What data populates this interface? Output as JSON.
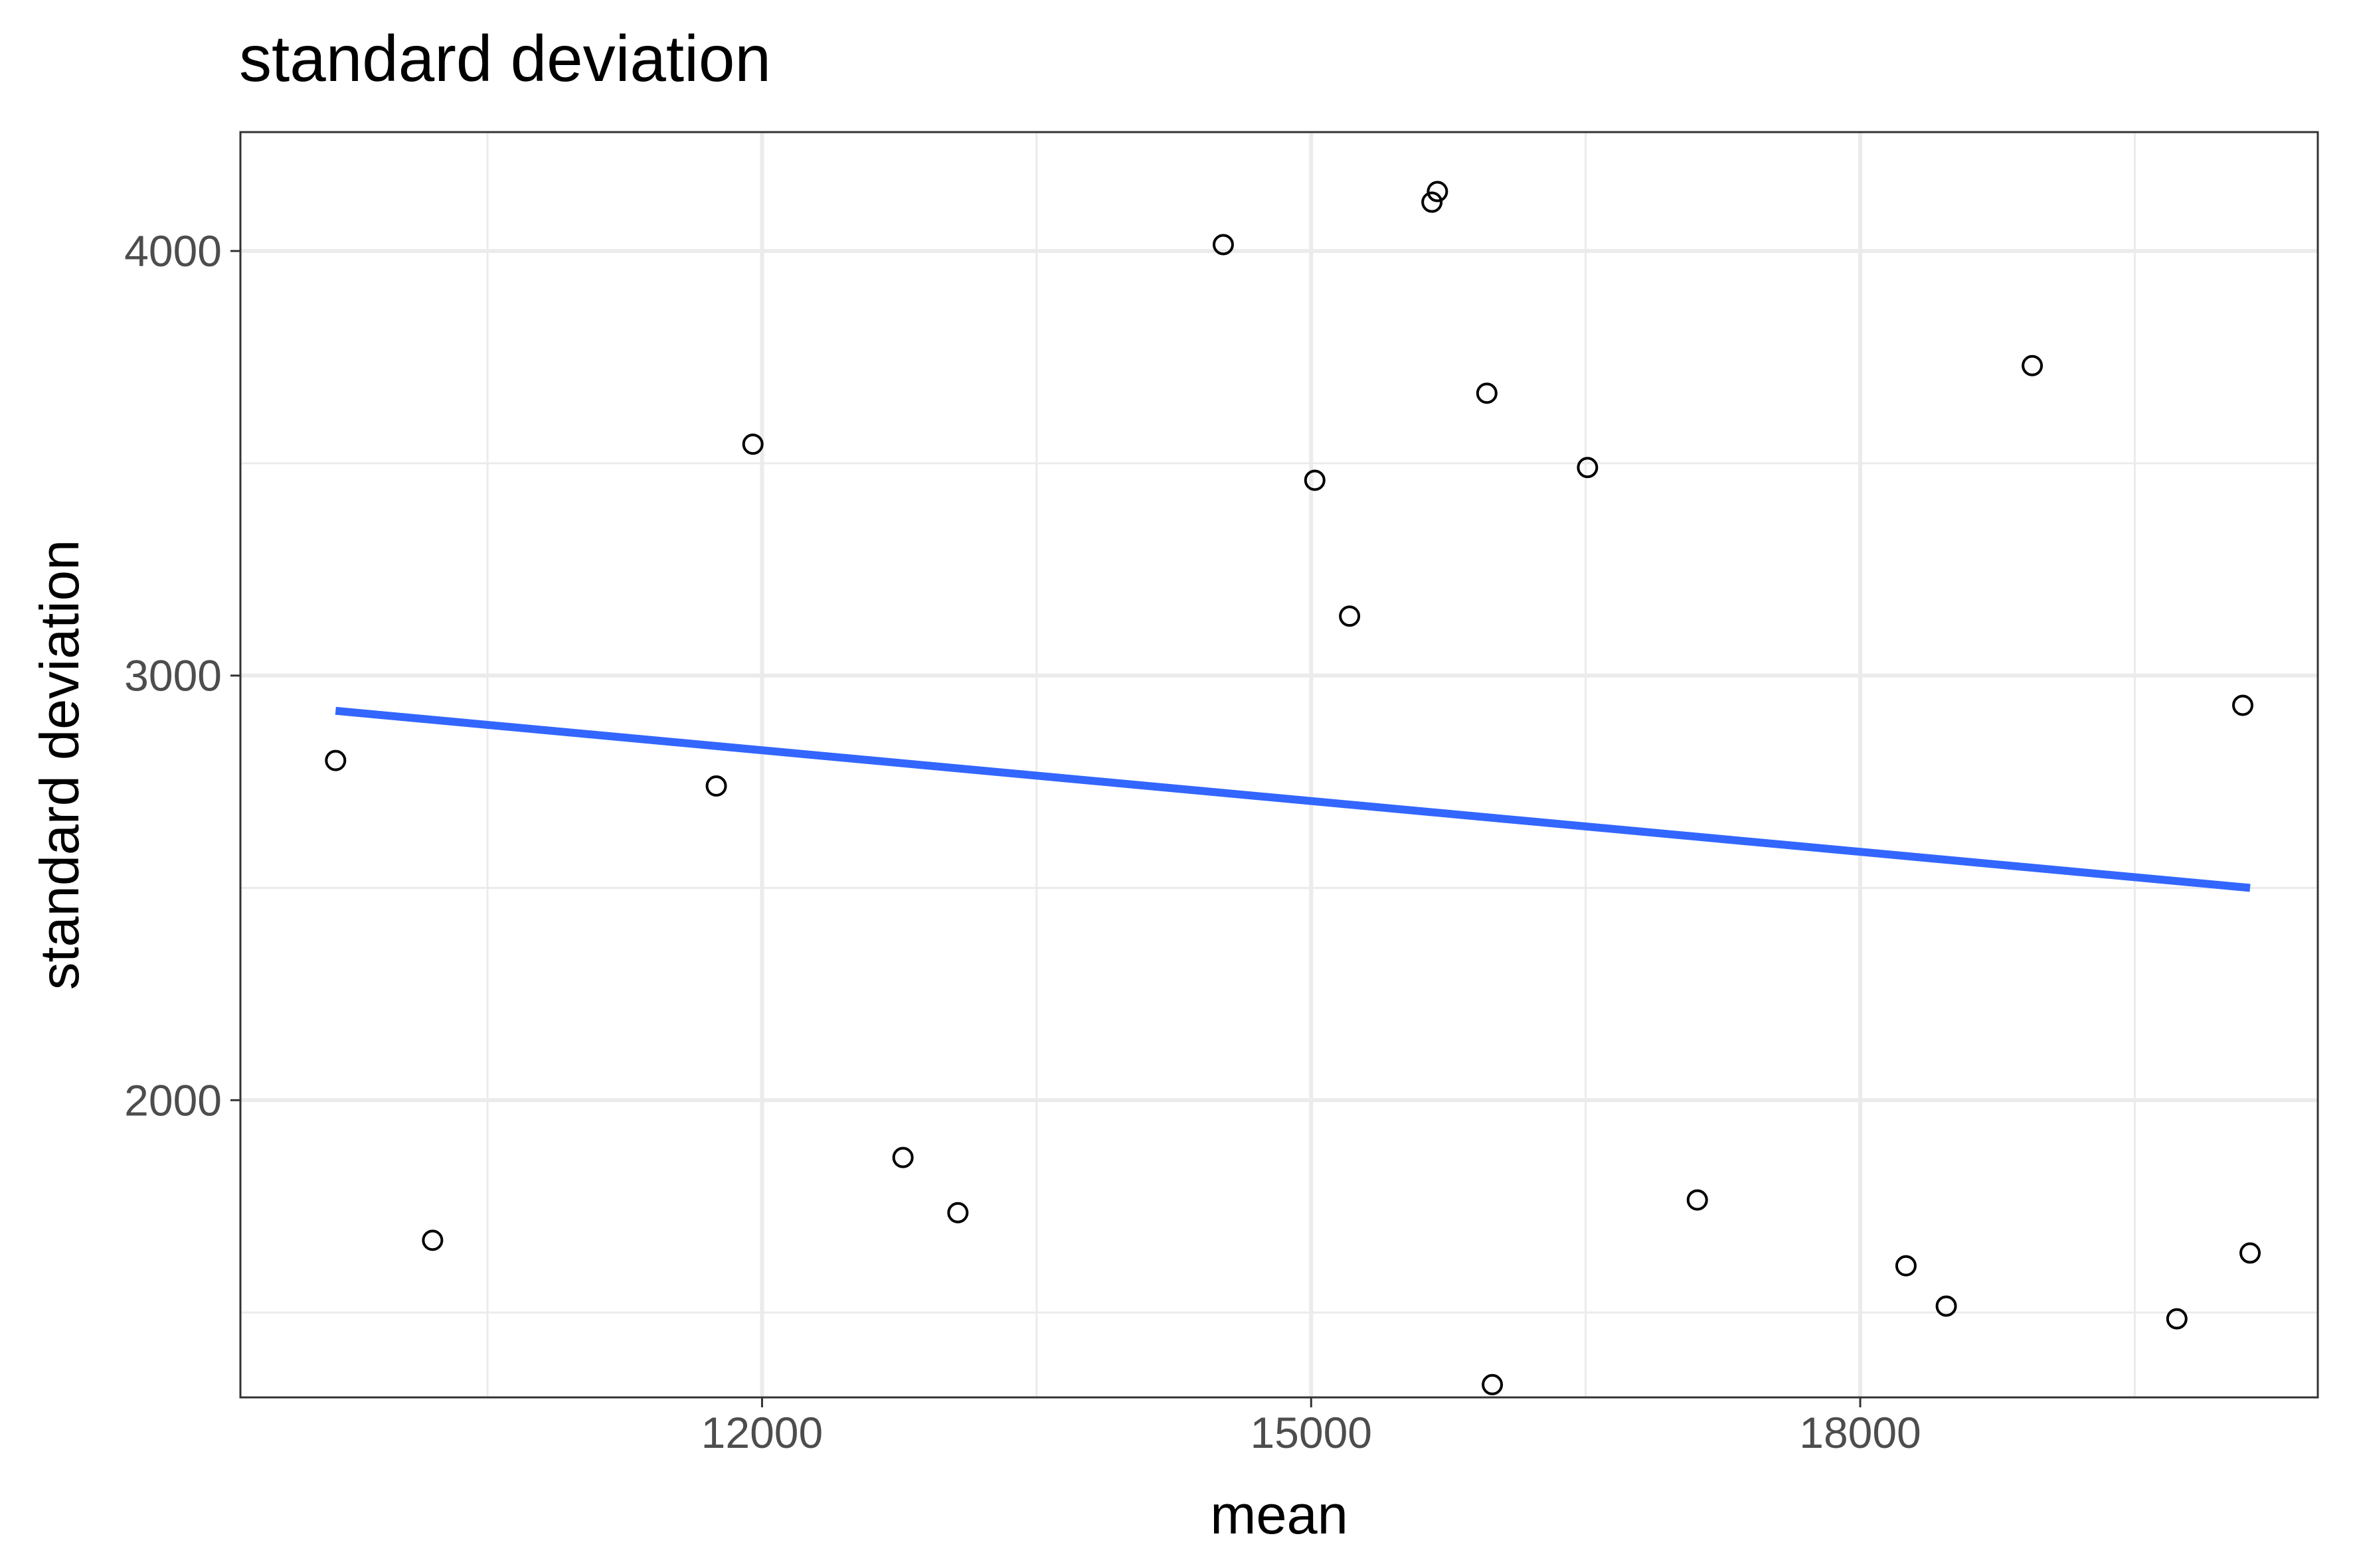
{
  "chart_data": {
    "type": "scatter",
    "title": "standard deviation",
    "xlabel": "mean",
    "ylabel": "standard deviation",
    "xlim": [
      9150,
      20500
    ],
    "ylim": [
      1300,
      4280
    ],
    "x_major_ticks": [
      12000,
      15000,
      18000
    ],
    "x_minor_ticks": [
      10500,
      13500,
      16500,
      19500
    ],
    "y_major_ticks": [
      2000,
      3000,
      4000
    ],
    "y_minor_ticks": [
      1500,
      2500,
      3500
    ],
    "x_tick_labels": [
      "12000",
      "15000",
      "18000"
    ],
    "y_tick_labels": [
      "2000",
      "3000",
      "4000"
    ],
    "grid": true,
    "legend": "none",
    "points": [
      {
        "x": 9670,
        "y": 2800
      },
      {
        "x": 10200,
        "y": 1670
      },
      {
        "x": 11750,
        "y": 2740
      },
      {
        "x": 11950,
        "y": 3545
      },
      {
        "x": 12770,
        "y": 1865
      },
      {
        "x": 13070,
        "y": 1735
      },
      {
        "x": 14520,
        "y": 4015
      },
      {
        "x": 15020,
        "y": 3460
      },
      {
        "x": 15210,
        "y": 3140
      },
      {
        "x": 15660,
        "y": 4115
      },
      {
        "x": 15690,
        "y": 4140
      },
      {
        "x": 15960,
        "y": 3665
      },
      {
        "x": 15990,
        "y": 1330
      },
      {
        "x": 16510,
        "y": 3490
      },
      {
        "x": 17110,
        "y": 1765
      },
      {
        "x": 18250,
        "y": 1610
      },
      {
        "x": 18470,
        "y": 1515
      },
      {
        "x": 18940,
        "y": 3730
      },
      {
        "x": 19730,
        "y": 1485
      },
      {
        "x": 20090,
        "y": 2930
      },
      {
        "x": 20130,
        "y": 1640
      }
    ],
    "trend_line": {
      "x": [
        9670,
        20130
      ],
      "y": [
        2917,
        2500
      ]
    },
    "colors": {
      "trend": "#3366ff",
      "points": "#000000",
      "grid": "#ebebeb",
      "border": "#333333"
    }
  }
}
